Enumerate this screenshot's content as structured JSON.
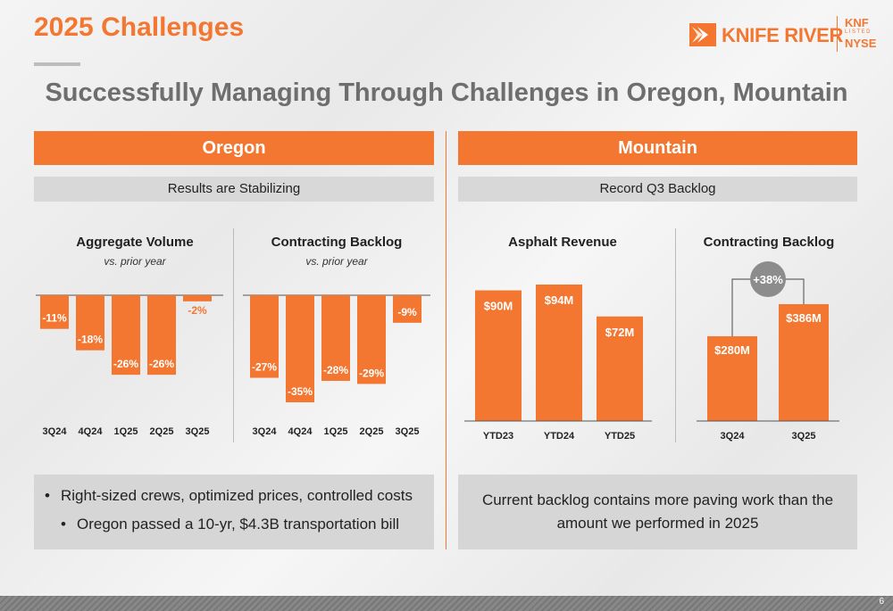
{
  "header": {
    "slide_title": "2025 Challenges",
    "headline": "Successfully Managing Through Challenges in Oregon, Mountain",
    "logo": {
      "wordmark": "KNIFE RIVER",
      "ticker": "KNF",
      "listed": "LISTED",
      "exchange": "NYSE",
      "icon": "knife-river-chevron-logo"
    }
  },
  "colors": {
    "accent": "#F37731",
    "band_gray": "#d8d8d8",
    "headline_gray": "#6e6e6e"
  },
  "oregon": {
    "heading": "Oregon",
    "subheading": "Results are Stabilizing",
    "bullets": [
      "Right-sized crews, optimized prices, controlled costs",
      "Oregon passed a 10-yr, $4.3B transportation bill"
    ]
  },
  "mountain": {
    "heading": "Mountain",
    "subheading": "Record Q3 Backlog",
    "note": "Current backlog contains more paving work than the amount we performed in 2025"
  },
  "chart_data": [
    {
      "type": "bar",
      "title": "Aggregate Volume",
      "subtitle": "vs. prior year",
      "categories": [
        "3Q24",
        "4Q24",
        "1Q25",
        "2Q25",
        "3Q25"
      ],
      "values": [
        -11,
        -18,
        -26,
        -26,
        -2
      ],
      "labels": [
        "-11%",
        "-18%",
        "-26%",
        "-26%",
        "-2%"
      ],
      "unit": "%",
      "ylim": [
        -35,
        0
      ]
    },
    {
      "type": "bar",
      "title": "Contracting Backlog",
      "subtitle": "vs. prior year",
      "categories": [
        "3Q24",
        "4Q24",
        "1Q25",
        "2Q25",
        "3Q25"
      ],
      "values": [
        -27,
        -35,
        -28,
        -29,
        -9
      ],
      "labels": [
        "-27%",
        "-35%",
        "-28%",
        "-29%",
        "-9%"
      ],
      "unit": "%",
      "ylim": [
        -35,
        0
      ]
    },
    {
      "type": "bar",
      "title": "Asphalt Revenue",
      "categories": [
        "YTD23",
        "YTD24",
        "YTD25"
      ],
      "values": [
        90,
        94,
        72
      ],
      "labels": [
        "$90M",
        "$94M",
        "$72M"
      ],
      "unit": "$M",
      "ylim": [
        0,
        94
      ]
    },
    {
      "type": "bar",
      "title": "Contracting Backlog",
      "categories": [
        "3Q24",
        "3Q25"
      ],
      "values": [
        280,
        386
      ],
      "labels": [
        "$280M",
        "$386M"
      ],
      "unit": "$M",
      "ylim": [
        0,
        386
      ],
      "annotation": "+38%"
    }
  ],
  "footer": {
    "page_number": "6"
  }
}
